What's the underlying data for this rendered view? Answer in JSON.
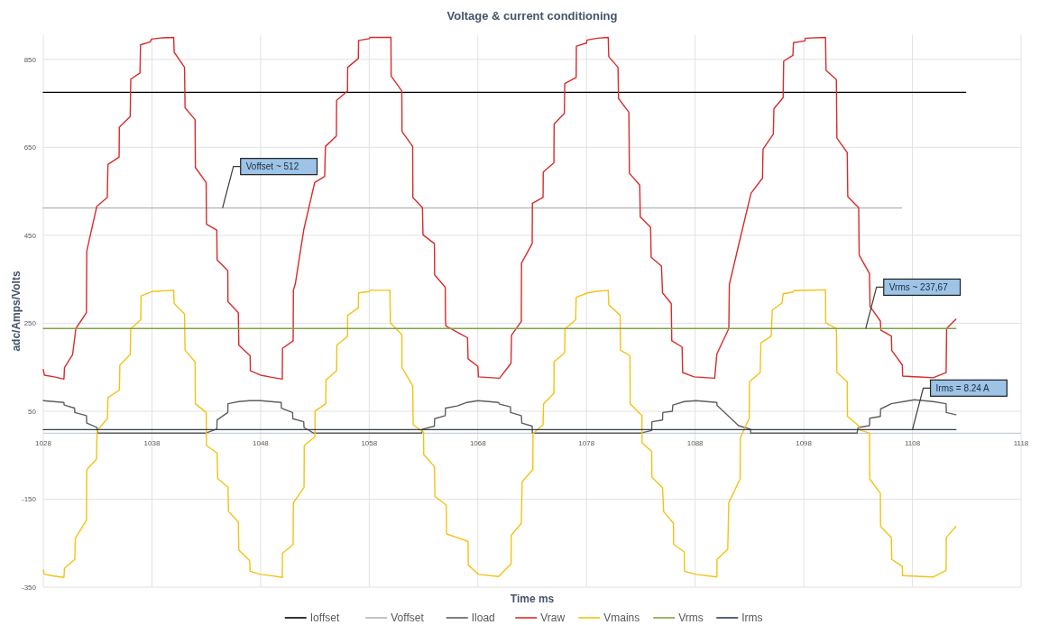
{
  "chart_data": {
    "type": "line",
    "title": "Voltage & current conditioning",
    "xlabel": "Time ms",
    "ylabel": "adc/Amps/Volts",
    "xlim": [
      1028,
      1118
    ],
    "xticks": [
      1028,
      1038,
      1048,
      1058,
      1068,
      1078,
      1088,
      1098,
      1108,
      1118
    ],
    "ylim": [
      -350,
      905
    ],
    "yticks": [
      -350,
      -150,
      50,
      250,
      450,
      650,
      850
    ],
    "grid": true,
    "legend": "bottom",
    "marker": "none",
    "line_style": "solid",
    "annotations": [
      {
        "text": "Voffset ~ 512",
        "x": 1044.5,
        "y": 512
      },
      {
        "text": "Vrms ~ 237,67",
        "x": 1103.7,
        "y": 237.67
      },
      {
        "text": "Irms = 8.24 A",
        "x": 1108,
        "y": 8.24
      }
    ],
    "series": [
      {
        "name": "Ioffset",
        "color": "#000000",
        "x": [
          1028,
          1112.9
        ],
        "values": [
          775,
          775
        ]
      },
      {
        "name": "Voffset",
        "color": "#b4b4b4",
        "x": [
          1028,
          1107
        ],
        "values": [
          512,
          512
        ]
      },
      {
        "name": "Iload",
        "color": "#5f5f5f",
        "x": [
          1028,
          1029.9,
          1029.92,
          1030.88,
          1030.9,
          1031.97,
          1032,
          1032.93,
          1033,
          1042.9,
          1043.97,
          1044,
          1044.98,
          1045,
          1046,
          1047,
          1048,
          1049.9,
          1049.92,
          1050.95,
          1050.97,
          1051.97,
          1052,
          1052.9,
          1062.8,
          1062.9,
          1064,
          1064.02,
          1065,
          1065.02,
          1066.1,
          1067,
          1068,
          1069,
          1069.9,
          1070,
          1071,
          1071.02,
          1072,
          1072.05,
          1073,
          1073.02,
          1082.9,
          1084,
          1084.02,
          1085,
          1085.02,
          1085.9,
          1085.95,
          1087,
          1088.1,
          1090,
          1090.02,
          1091.1,
          1092,
          1093.1,
          1093.12,
          1102.9,
          1103,
          1104.05,
          1104.07,
          1105.05,
          1105.07,
          1106.06,
          1107.2,
          1108.2,
          1109.9,
          1111.1,
          1111.12,
          1112
        ],
        "values": [
          74,
          70,
          64,
          57,
          47,
          40,
          23,
          13,
          0,
          0,
          9,
          30,
          47,
          67,
          72,
          74,
          74,
          70,
          57,
          47,
          33,
          26,
          13,
          0,
          0,
          9,
          16,
          33,
          40,
          57,
          62,
          70,
          74,
          72,
          70,
          66,
          60,
          47,
          40,
          23,
          16,
          0,
          0,
          6,
          26,
          30,
          47,
          50,
          64,
          72,
          74,
          70,
          63,
          38,
          17,
          9,
          0,
          0,
          13,
          17,
          34,
          38,
          55,
          67,
          72,
          76,
          72,
          67,
          47,
          42
        ]
      },
      {
        "name": "Vraw",
        "color": "#d92b2b",
        "x": [
          1028,
          1028.1,
          1029,
          1029.9,
          1029.95,
          1030.7,
          1031,
          1031.97,
          1032,
          1032.93,
          1033.89,
          1033.95,
          1034.98,
          1035,
          1036,
          1036.05,
          1036.9,
          1036.95,
          1037.86,
          1037.95,
          1038.96,
          1040,
          1040.05,
          1041,
          1041.05,
          1041.97,
          1042,
          1042.99,
          1043.02,
          1043.97,
          1044,
          1044.98,
          1045,
          1045.95,
          1046,
          1047.04,
          1047.06,
          1048,
          1049.04,
          1050,
          1050.02,
          1051,
          1051.02,
          1051.2,
          1051.97,
          1052.98,
          1053.9,
          1053.97,
          1054.98,
          1055,
          1056,
          1056.02,
          1057,
          1057.02,
          1058,
          1058.1,
          1060,
          1060.02,
          1061,
          1061.02,
          1062,
          1062.02,
          1062.9,
          1062.95,
          1064,
          1064.02,
          1065,
          1065.02,
          1065.05,
          1067.05,
          1067.1,
          1068,
          1068.05,
          1070,
          1071.05,
          1071.1,
          1072,
          1072.02,
          1073,
          1073.02,
          1074,
          1074.02,
          1075,
          1075.02,
          1075.96,
          1076,
          1077.05,
          1077.07,
          1078,
          1078.05,
          1079,
          1080,
          1080.05,
          1080.9,
          1080.95,
          1081.9,
          1081.95,
          1082.9,
          1082.95,
          1083.9,
          1083.95,
          1084.9,
          1085,
          1085.8,
          1085.85,
          1086.8,
          1086.85,
          1087.9,
          1089.8,
          1090,
          1091.1,
          1091.15,
          1092.1,
          1093.15,
          1094.2,
          1094.25,
          1095.2,
          1095.25,
          1096.1,
          1096.15,
          1097,
          1097.05,
          1098.1,
          1098.15,
          1100,
          1100.05,
          1101,
          1101.05,
          1102,
          1102.05,
          1103.05,
          1103.1,
          1104.05,
          1104.1,
          1105.05,
          1105.1,
          1106.06,
          1106.1,
          1107.07,
          1107.1,
          1109.9,
          1111.1,
          1111.15,
          1112
        ],
        "values": [
          145,
          132,
          128,
          123,
          149,
          179,
          238,
          274,
          414,
          516,
          536,
          611,
          628,
          696,
          720,
          805,
          819,
          883,
          890,
          896,
          899,
          900,
          866,
          832,
          740,
          713,
          604,
          570,
          475,
          462,
          394,
          370,
          299,
          274,
          200,
          176,
          142,
          132,
          127,
          123,
          193,
          210,
          325,
          340,
          462,
          570,
          584,
          652,
          676,
          757,
          778,
          832,
          852,
          893,
          897,
          900,
          900,
          812,
          778,
          686,
          652,
          536,
          513,
          451,
          431,
          360,
          332,
          258,
          244,
          217,
          169,
          152,
          128,
          125,
          159,
          223,
          254,
          387,
          431,
          523,
          536,
          594,
          615,
          703,
          727,
          795,
          809,
          880,
          887,
          894,
          898,
          900,
          856,
          832,
          761,
          730,
          591,
          564,
          492,
          468,
          400,
          380,
          319,
          295,
          210,
          196,
          138,
          128,
          125,
          180,
          238,
          338,
          438,
          546,
          580,
          646,
          680,
          738,
          763,
          846,
          859,
          888,
          892,
          898,
          900,
          825,
          804,
          671,
          638,
          538,
          513,
          405,
          363,
          288,
          255,
          234,
          221,
          188,
          155,
          130,
          126,
          138,
          238,
          259
        ]
      },
      {
        "name": "Vmains",
        "color": "#f2c314",
        "x": [
          1028,
          1028.1,
          1029,
          1029.9,
          1029.95,
          1030.9,
          1030.95,
          1031.97,
          1032,
          1032.9,
          1032.95,
          1033.9,
          1033.95,
          1035,
          1035.05,
          1036,
          1036.05,
          1036.97,
          1037,
          1038,
          1040,
          1040.05,
          1041,
          1041.05,
          1041.97,
          1042,
          1043,
          1043.02,
          1044,
          1044.05,
          1045,
          1045.05,
          1045.95,
          1046,
          1047,
          1047.04,
          1048,
          1049.04,
          1050,
          1050.02,
          1051,
          1051.02,
          1052,
          1052.02,
          1053,
          1053.02,
          1054,
          1054.02,
          1055,
          1055.02,
          1056,
          1056.02,
          1057,
          1057.02,
          1058,
          1058.1,
          1059.9,
          1059.95,
          1061,
          1061.02,
          1062,
          1062.05,
          1063,
          1063.02,
          1064,
          1064.05,
          1065.1,
          1065.12,
          1067.1,
          1067.12,
          1068.05,
          1069.9,
          1071.06,
          1071.08,
          1072,
          1072.08,
          1073.06,
          1073.08,
          1074,
          1074.05,
          1075,
          1075.02,
          1076,
          1076.02,
          1077,
          1077.05,
          1078.1,
          1078.8,
          1080,
          1080.05,
          1081.1,
          1081.12,
          1082,
          1082.02,
          1083.1,
          1083.12,
          1084,
          1084.02,
          1085,
          1085.1,
          1086,
          1086.02,
          1087,
          1087.02,
          1088.1,
          1090,
          1090.02,
          1091,
          1091.1,
          1092.14,
          1092.16,
          1092.98,
          1093,
          1093.99,
          1094.05,
          1095,
          1095.1,
          1096,
          1096.1,
          1097,
          1097.1,
          1100,
          1100.02,
          1101,
          1101.05,
          1102,
          1102.02,
          1103.05,
          1103.1,
          1104.05,
          1104.07,
          1105.05,
          1105.07,
          1106.06,
          1106.1,
          1107.07,
          1107.1,
          1109.9,
          1111.1,
          1111.12,
          1112
        ],
        "values": [
          -311,
          -321,
          -325,
          -328,
          -307,
          -287,
          -239,
          -198,
          -83,
          -59,
          6,
          33,
          81,
          98,
          155,
          179,
          237,
          258,
          312,
          322,
          325,
          295,
          271,
          189,
          162,
          67,
          47,
          -28,
          -45,
          -103,
          -123,
          -178,
          -202,
          -266,
          -290,
          -314,
          -321,
          -324,
          -328,
          -273,
          -253,
          -158,
          -123,
          -28,
          -8,
          50,
          67,
          121,
          142,
          200,
          220,
          268,
          285,
          319,
          322,
          325,
          325,
          251,
          224,
          149,
          108,
          19,
          2,
          -49,
          -76,
          -144,
          -164,
          -229,
          -246,
          -300,
          -321,
          -326,
          -297,
          -232,
          -205,
          -110,
          -83,
          -1,
          19,
          67,
          91,
          162,
          183,
          237,
          258,
          309,
          319,
          322,
          325,
          292,
          268,
          189,
          176,
          67,
          40,
          -22,
          -42,
          -100,
          -124,
          -178,
          -205,
          -253,
          -270,
          -314,
          -321,
          -327,
          -287,
          -264,
          -158,
          -104,
          -10,
          34,
          117,
          138,
          205,
          221,
          280,
          296,
          317,
          321,
          324,
          326,
          251,
          238,
          138,
          117,
          38,
          17,
          8,
          0,
          -104,
          -137,
          -212,
          -237,
          -287,
          -303,
          -324,
          -327,
          -312,
          -237,
          -212
        ]
      },
      {
        "name": "Vrms",
        "color": "#7da447",
        "x": [
          1028,
          1112
        ],
        "values": [
          238,
          238
        ]
      },
      {
        "name": "Irms",
        "color": "#2f3d52",
        "x": [
          1028,
          1112
        ],
        "values": [
          8,
          8
        ]
      }
    ]
  }
}
